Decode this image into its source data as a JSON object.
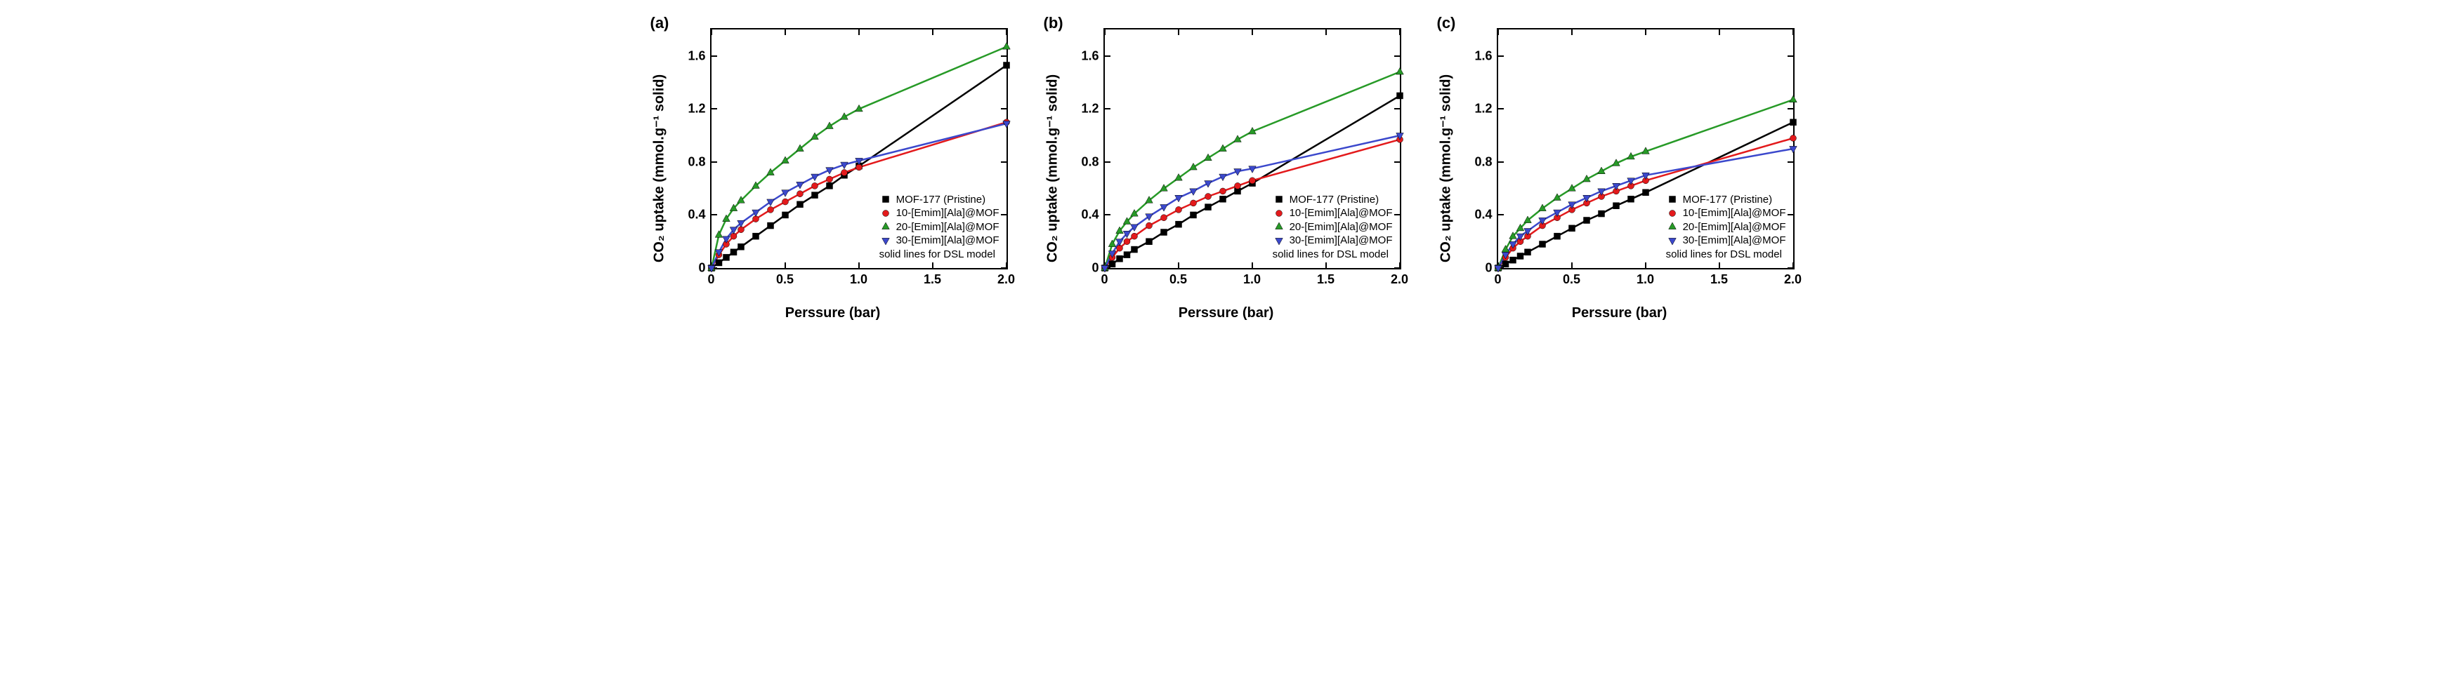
{
  "panels": [
    {
      "label": "(a)"
    },
    {
      "label": "(b)"
    },
    {
      "label": "(c)"
    }
  ],
  "common": {
    "xlabel": "Perssure (bar)",
    "ylabel_html": "CO₂ uptake (mmol.g⁻¹ solid)",
    "xlim": [
      0,
      2
    ],
    "ylim": [
      0,
      1.8
    ],
    "xticks": [
      0,
      0.5,
      1.0,
      1.5,
      2.0
    ],
    "yticks": [
      0,
      0.4,
      0.8,
      1.2,
      1.6
    ],
    "title_fontsize": 20,
    "tick_fontsize": 18,
    "background_color": "#ffffff",
    "border_color": "#000000",
    "line_width": 2.5,
    "legend_note": "solid lines for DSL model"
  },
  "series_meta": [
    {
      "name": "MOF-177 (Pristine)",
      "color": "#000000",
      "marker": "square"
    },
    {
      "name": "10-[Emim][Ala]@MOF",
      "color": "#e31a1c",
      "marker": "circle"
    },
    {
      "name": "20-[Emim][Ala]@MOF",
      "color": "#279a27",
      "marker": "triangle-up"
    },
    {
      "name": "30-[Emim][Ala]@MOF",
      "color": "#3b48cc",
      "marker": "triangle-down"
    }
  ],
  "series_data": {
    "a": {
      "x_dense": [
        0,
        0.05,
        0.1,
        0.15,
        0.2,
        0.3,
        0.4,
        0.5,
        0.6,
        0.7,
        0.8,
        0.9,
        1.0,
        2.0
      ],
      "MOF-177 (Pristine)": [
        0,
        0.04,
        0.08,
        0.12,
        0.16,
        0.24,
        0.32,
        0.4,
        0.48,
        0.55,
        0.62,
        0.7,
        0.77,
        1.53
      ],
      "10-[Emim][Ala]@MOF": [
        0,
        0.1,
        0.18,
        0.24,
        0.29,
        0.37,
        0.44,
        0.5,
        0.56,
        0.62,
        0.67,
        0.72,
        0.76,
        1.1
      ],
      "20-[Emim][Ala]@MOF": [
        0,
        0.25,
        0.37,
        0.45,
        0.51,
        0.62,
        0.72,
        0.81,
        0.9,
        0.99,
        1.07,
        1.14,
        1.2,
        1.67
      ],
      "30-[Emim][Ala]@MOF": [
        0,
        0.12,
        0.22,
        0.29,
        0.34,
        0.42,
        0.5,
        0.57,
        0.63,
        0.69,
        0.74,
        0.78,
        0.81,
        1.09
      ]
    },
    "b": {
      "x_dense": [
        0,
        0.05,
        0.1,
        0.15,
        0.2,
        0.3,
        0.4,
        0.5,
        0.6,
        0.7,
        0.8,
        0.9,
        1.0,
        2.0
      ],
      "MOF-177 (Pristine)": [
        0,
        0.03,
        0.07,
        0.1,
        0.14,
        0.2,
        0.27,
        0.33,
        0.4,
        0.46,
        0.52,
        0.58,
        0.64,
        1.3
      ],
      "10-[Emim][Ala]@MOF": [
        0,
        0.08,
        0.15,
        0.2,
        0.24,
        0.32,
        0.38,
        0.44,
        0.49,
        0.54,
        0.58,
        0.62,
        0.66,
        0.97
      ],
      "20-[Emim][Ala]@MOF": [
        0,
        0.18,
        0.28,
        0.35,
        0.41,
        0.51,
        0.6,
        0.68,
        0.76,
        0.83,
        0.9,
        0.97,
        1.03,
        1.48
      ],
      "30-[Emim][Ala]@MOF": [
        0,
        0.11,
        0.2,
        0.26,
        0.31,
        0.39,
        0.46,
        0.53,
        0.58,
        0.64,
        0.69,
        0.73,
        0.75,
        1.0
      ]
    },
    "c": {
      "x_dense": [
        0,
        0.05,
        0.1,
        0.15,
        0.2,
        0.3,
        0.4,
        0.5,
        0.6,
        0.7,
        0.8,
        0.9,
        1.0,
        2.0
      ],
      "MOF-177 (Pristine)": [
        0,
        0.03,
        0.06,
        0.09,
        0.12,
        0.18,
        0.24,
        0.3,
        0.36,
        0.41,
        0.47,
        0.52,
        0.57,
        1.1
      ],
      "10-[Emim][Ala]@MOF": [
        0,
        0.08,
        0.15,
        0.2,
        0.24,
        0.32,
        0.38,
        0.44,
        0.49,
        0.54,
        0.58,
        0.62,
        0.66,
        0.98
      ],
      "20-[Emim][Ala]@MOF": [
        0,
        0.14,
        0.24,
        0.3,
        0.36,
        0.45,
        0.53,
        0.6,
        0.67,
        0.73,
        0.79,
        0.84,
        0.88,
        1.27
      ],
      "30-[Emim][Ala]@MOF": [
        0,
        0.1,
        0.18,
        0.24,
        0.28,
        0.36,
        0.42,
        0.48,
        0.53,
        0.58,
        0.62,
        0.66,
        0.7,
        0.9
      ]
    }
  }
}
